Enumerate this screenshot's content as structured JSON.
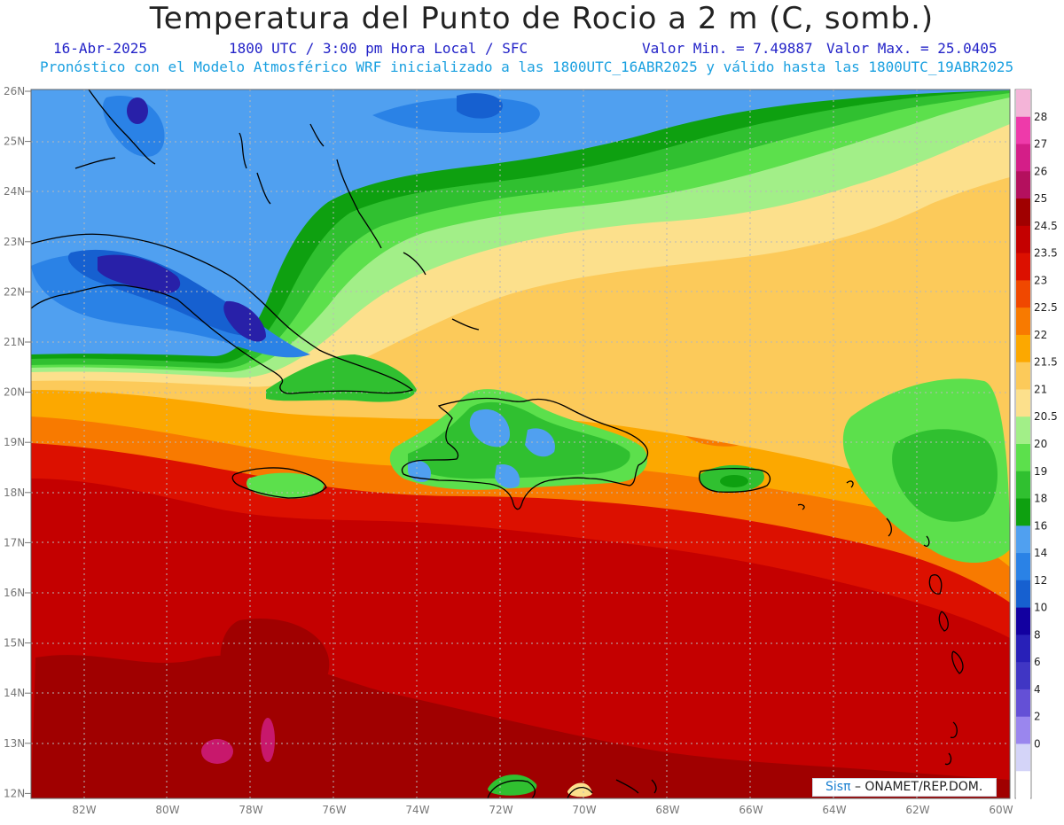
{
  "header": {
    "title": "Temperatura del Punto de Rocio a 2 m (C, somb.)",
    "date": "16-Abr-2025",
    "time": "1800 UTC / 3:00 pm Hora Local / SFC",
    "min": "Valor Min. = 7.49887",
    "max": "Valor Max. = 25.0405",
    "subtitle": "Pronóstico con el Modelo Atmosférico WRF inicializado a las 1800UTC_16ABR2025 y válido hasta las  1800UTC_19ABR2025"
  },
  "map": {
    "lon_labels": [
      "82W",
      "80W",
      "78W",
      "76W",
      "74W",
      "72W",
      "70W",
      "68W",
      "66W",
      "64W",
      "62W",
      "60W"
    ],
    "lat_labels": [
      "26N",
      "25N",
      "24N",
      "23N",
      "22N",
      "21N",
      "20N",
      "19N",
      "18N",
      "17N",
      "16N",
      "15N",
      "14N",
      "13N",
      "12N"
    ]
  },
  "colorbar": {
    "labels": [
      "28",
      "27",
      "26",
      "25",
      "24.5",
      "23.5",
      "23",
      "22.5",
      "22",
      "21.5",
      "21",
      "20.5",
      "20",
      "19",
      "18",
      "16",
      "14",
      "12",
      "10",
      "8",
      "6",
      "4",
      "2",
      "0"
    ],
    "colors": [
      "#f4b4d8",
      "#ee3aaa",
      "#d41e88",
      "#b4105e",
      "#a00000",
      "#c40000",
      "#dc1000",
      "#f04800",
      "#f87a00",
      "#fca800",
      "#fcca5a",
      "#fce08c",
      "#a2ef88",
      "#5ce04c",
      "#30c030",
      "#0ea010",
      "#50a0f0",
      "#2a82e6",
      "#1660d0",
      "#1200a0",
      "#2820b8",
      "#4036c4",
      "#6450d6",
      "#9a86ee",
      "#d4d4f8",
      "#ffffff"
    ]
  },
  "logo": {
    "brand": "Sisπ",
    "text": "– ONAMET/REP.DOM."
  },
  "palette": {
    "blue_light": "#50a0f0",
    "blue_mid": "#2a82e6",
    "blue_dark": "#1660d0",
    "navy": "#2820a8",
    "green_dark": "#0ea010",
    "green_mid": "#30c030",
    "green": "#5ce04c",
    "green_light": "#a2ef88",
    "yellow": "#fce08c",
    "yellow_orange": "#fcca5a",
    "orange_light": "#fca800",
    "orange": "#f87a00",
    "orange_dark": "#f04800",
    "red_orange": "#dc1000",
    "red": "#c40000",
    "dark_red": "#a00000",
    "magenta": "#c8186c"
  }
}
